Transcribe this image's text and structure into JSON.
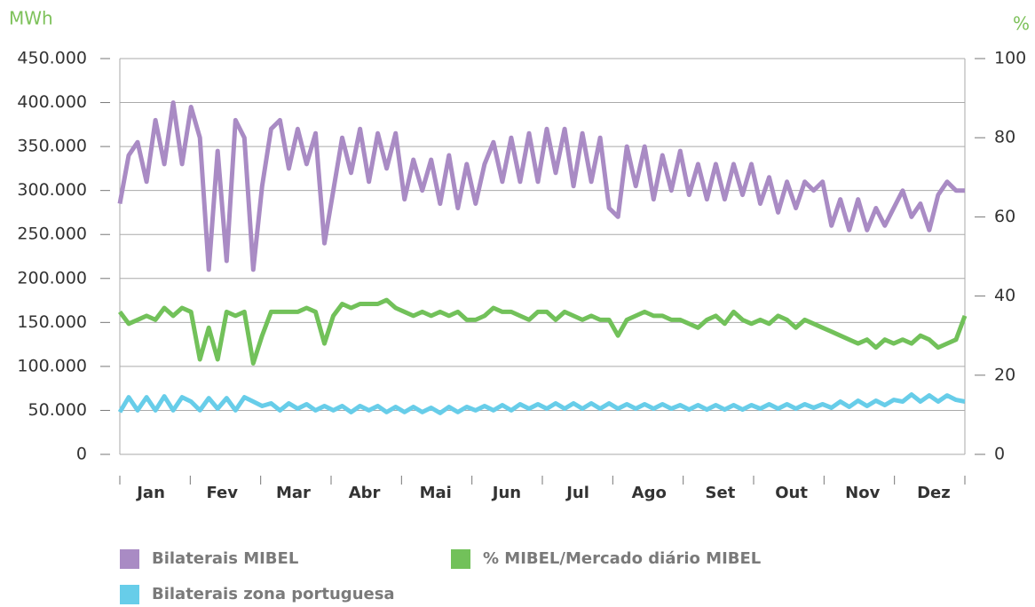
{
  "chart_data": {
    "type": "line",
    "y_unit": "MWh",
    "y2_unit": "%",
    "categories": [
      null,
      null,
      null,
      null,
      "Jan",
      null,
      null,
      null,
      null,
      null,
      null,
      null,
      "Fev",
      null,
      null,
      null,
      null,
      null,
      null,
      null,
      "Mar",
      null,
      null,
      null,
      null,
      null,
      null,
      null,
      "Abr",
      null,
      null,
      null,
      null,
      null,
      null,
      null,
      "Mai",
      null,
      null,
      null,
      null,
      null,
      null,
      null,
      "Jun",
      null,
      null,
      null,
      null,
      null,
      null,
      null,
      "Jul",
      null,
      null,
      null,
      null,
      null,
      null,
      null,
      "Ago",
      null,
      null,
      null,
      null,
      null,
      null,
      null,
      "Set",
      null,
      null,
      null,
      null,
      null,
      null,
      null,
      "Out",
      null,
      null,
      null,
      null,
      null,
      null,
      null,
      "Nov",
      null,
      null,
      null,
      null,
      null,
      null,
      null,
      "Dez",
      null,
      null,
      null
    ],
    "ylim": [
      0,
      450000
    ],
    "yticks": [
      0,
      {
        "value": 50000,
        "label": "50.000"
      },
      {
        "value": 100000,
        "label": "100.000"
      },
      {
        "value": 150000,
        "label": "150.000"
      },
      {
        "value": 200000,
        "label": "200.000"
      },
      {
        "value": 250000,
        "label": "250.000"
      },
      {
        "value": 300000,
        "label": "300.000"
      },
      {
        "value": 350000,
        "label": "350.000"
      },
      {
        "value": 400000,
        "label": "400.000"
      },
      {
        "value": 450000,
        "label": "450.000"
      }
    ],
    "y2lim": [
      0,
      100
    ],
    "y2ticks": [
      0,
      20,
      40,
      60,
      80,
      100
    ],
    "grid": true,
    "series": [
      {
        "name": "Bilaterais MIBEL",
        "color": "#a98bc4",
        "values": [
          285000,
          340000,
          355000,
          310000,
          380000,
          330000,
          400000,
          330000,
          395000,
          360000,
          210000,
          345000,
          220000,
          380000,
          360000,
          210000,
          305000,
          370000,
          380000,
          325000,
          370000,
          330000,
          365000,
          240000,
          300000,
          360000,
          320000,
          370000,
          310000,
          365000,
          325000,
          365000,
          290000,
          335000,
          300000,
          335000,
          285000,
          340000,
          280000,
          330000,
          285000,
          330000,
          355000,
          310000,
          360000,
          310000,
          365000,
          310000,
          370000,
          320000,
          370000,
          305000,
          365000,
          310000,
          360000,
          280000,
          270000,
          350000,
          305000,
          350000,
          290000,
          340000,
          300000,
          345000,
          295000,
          330000,
          290000,
          330000,
          290000,
          330000,
          295000,
          330000,
          285000,
          315000,
          275000,
          310000,
          280000,
          310000,
          300000,
          310000,
          260000,
          290000,
          255000,
          290000,
          255000,
          280000,
          260000,
          280000,
          300000,
          270000,
          285000,
          255000,
          295000,
          310000,
          300000,
          300000
        ]
      },
      {
        "name": "% MIBEL/Mercado diário MIBEL",
        "color": "#72c15a",
        "axis": "y2",
        "values": [
          36,
          33,
          34,
          35,
          34,
          37,
          35,
          37,
          36,
          24,
          32,
          24,
          36,
          35,
          36,
          23,
          30,
          36,
          36,
          36,
          36,
          37,
          36,
          28,
          35,
          38,
          37,
          38,
          38,
          38,
          39,
          37,
          36,
          35,
          36,
          35,
          36,
          35,
          36,
          34,
          34,
          35,
          37,
          36,
          36,
          35,
          34,
          36,
          36,
          34,
          36,
          35,
          34,
          35,
          34,
          34,
          30,
          34,
          35,
          36,
          35,
          35,
          34,
          34,
          33,
          32,
          34,
          35,
          33,
          36,
          34,
          33,
          34,
          33,
          35,
          34,
          32,
          34,
          33,
          32,
          31,
          30,
          29,
          28,
          29,
          27,
          29,
          28,
          29,
          28,
          30,
          29,
          27,
          28,
          29,
          35
        ]
      },
      {
        "name": "Bilaterais zona portuguesa",
        "color": "#67cde9",
        "values": [
          48000,
          65000,
          50000,
          65000,
          50000,
          66000,
          50000,
          65000,
          60000,
          50000,
          64000,
          52000,
          64000,
          50000,
          65000,
          60000,
          55000,
          58000,
          50000,
          58000,
          52000,
          57000,
          50000,
          55000,
          50000,
          55000,
          48000,
          55000,
          50000,
          55000,
          48000,
          54000,
          48000,
          54000,
          48000,
          53000,
          47000,
          54000,
          48000,
          54000,
          50000,
          55000,
          50000,
          56000,
          50000,
          57000,
          52000,
          57000,
          52000,
          58000,
          52000,
          58000,
          52000,
          58000,
          52000,
          58000,
          52000,
          57000,
          52000,
          57000,
          52000,
          57000,
          52000,
          56000,
          51000,
          56000,
          51000,
          56000,
          51000,
          56000,
          51000,
          56000,
          52000,
          57000,
          52000,
          57000,
          52000,
          57000,
          53000,
          57000,
          53000,
          60000,
          54000,
          61000,
          55000,
          61000,
          56000,
          62000,
          60000,
          68000,
          60000,
          67000,
          60000,
          67000,
          62000,
          60000
        ]
      }
    ]
  }
}
